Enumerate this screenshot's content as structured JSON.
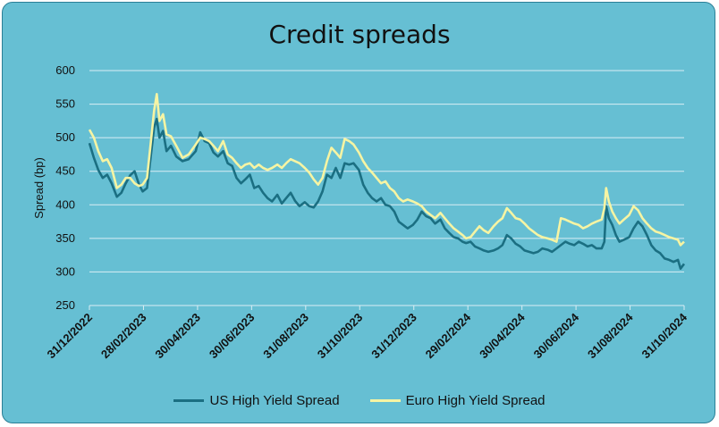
{
  "chart_data": {
    "type": "line",
    "title": "Credit spreads",
    "ylabel": "Spread (bp)",
    "ylim": [
      250,
      600
    ],
    "y_ticks": [
      250,
      300,
      350,
      400,
      450,
      500,
      550,
      600
    ],
    "x_tick_labels": [
      "31/12/2022",
      "28/02/2023",
      "30/04/2023",
      "30/06/2023",
      "31/08/2023",
      "31/10/2023",
      "31/12/2023",
      "29/02/2024",
      "30/04/2024",
      "30/06/2024",
      "31/08/2024",
      "31/10/2024"
    ],
    "x_start": "2022-12-31",
    "x_end": "2024-11-01",
    "grid": true,
    "legend_position": "bottom",
    "series": [
      {
        "name": "US High Yield Spread",
        "color": "#1b6f82",
        "points": [
          [
            "2022-12-31",
            492
          ],
          [
            "2023-01-05",
            470
          ],
          [
            "2023-01-10",
            452
          ],
          [
            "2023-01-15",
            440
          ],
          [
            "2023-01-20",
            445
          ],
          [
            "2023-01-25",
            432
          ],
          [
            "2023-01-31",
            412
          ],
          [
            "2023-02-05",
            418
          ],
          [
            "2023-02-10",
            432
          ],
          [
            "2023-02-15",
            444
          ],
          [
            "2023-02-20",
            450
          ],
          [
            "2023-02-25",
            430
          ],
          [
            "2023-03-01",
            420
          ],
          [
            "2023-03-06",
            425
          ],
          [
            "2023-03-10",
            470
          ],
          [
            "2023-03-14",
            515
          ],
          [
            "2023-03-17",
            528
          ],
          [
            "2023-03-20",
            500
          ],
          [
            "2023-03-24",
            510
          ],
          [
            "2023-03-28",
            480
          ],
          [
            "2023-04-02",
            488
          ],
          [
            "2023-04-08",
            472
          ],
          [
            "2023-04-15",
            465
          ],
          [
            "2023-04-22",
            468
          ],
          [
            "2023-04-30",
            480
          ],
          [
            "2023-05-05",
            508
          ],
          [
            "2023-05-10",
            495
          ],
          [
            "2023-05-15",
            492
          ],
          [
            "2023-05-20",
            478
          ],
          [
            "2023-05-25",
            472
          ],
          [
            "2023-05-31",
            480
          ],
          [
            "2023-06-05",
            462
          ],
          [
            "2023-06-10",
            458
          ],
          [
            "2023-06-15",
            440
          ],
          [
            "2023-06-20",
            432
          ],
          [
            "2023-06-25",
            438
          ],
          [
            "2023-06-30",
            445
          ],
          [
            "2023-07-05",
            425
          ],
          [
            "2023-07-10",
            428
          ],
          [
            "2023-07-15",
            418
          ],
          [
            "2023-07-20",
            410
          ],
          [
            "2023-07-25",
            405
          ],
          [
            "2023-07-31",
            415
          ],
          [
            "2023-08-05",
            402
          ],
          [
            "2023-08-10",
            410
          ],
          [
            "2023-08-15",
            418
          ],
          [
            "2023-08-20",
            406
          ],
          [
            "2023-08-25",
            398
          ],
          [
            "2023-08-31",
            404
          ],
          [
            "2023-09-05",
            398
          ],
          [
            "2023-09-10",
            396
          ],
          [
            "2023-09-15",
            405
          ],
          [
            "2023-09-20",
            420
          ],
          [
            "2023-09-25",
            445
          ],
          [
            "2023-09-30",
            440
          ],
          [
            "2023-10-05",
            455
          ],
          [
            "2023-10-10",
            440
          ],
          [
            "2023-10-15",
            462
          ],
          [
            "2023-10-20",
            460
          ],
          [
            "2023-10-25",
            462
          ],
          [
            "2023-10-31",
            452
          ],
          [
            "2023-11-05",
            430
          ],
          [
            "2023-11-10",
            418
          ],
          [
            "2023-11-15",
            410
          ],
          [
            "2023-11-20",
            405
          ],
          [
            "2023-11-25",
            410
          ],
          [
            "2023-11-30",
            400
          ],
          [
            "2023-12-05",
            398
          ],
          [
            "2023-12-10",
            390
          ],
          [
            "2023-12-15",
            375
          ],
          [
            "2023-12-20",
            370
          ],
          [
            "2023-12-25",
            365
          ],
          [
            "2023-12-31",
            370
          ],
          [
            "2024-01-05",
            378
          ],
          [
            "2024-01-10",
            390
          ],
          [
            "2024-01-15",
            383
          ],
          [
            "2024-01-20",
            380
          ],
          [
            "2024-01-25",
            372
          ],
          [
            "2024-01-31",
            378
          ],
          [
            "2024-02-05",
            365
          ],
          [
            "2024-02-10",
            358
          ],
          [
            "2024-02-15",
            352
          ],
          [
            "2024-02-20",
            350
          ],
          [
            "2024-02-25",
            345
          ],
          [
            "2024-02-29",
            343
          ],
          [
            "2024-03-05",
            345
          ],
          [
            "2024-03-10",
            338
          ],
          [
            "2024-03-15",
            335
          ],
          [
            "2024-03-20",
            332
          ],
          [
            "2024-03-25",
            330
          ],
          [
            "2024-03-31",
            332
          ],
          [
            "2024-04-05",
            335
          ],
          [
            "2024-04-10",
            340
          ],
          [
            "2024-04-15",
            355
          ],
          [
            "2024-04-20",
            350
          ],
          [
            "2024-04-25",
            342
          ],
          [
            "2024-04-30",
            338
          ],
          [
            "2024-05-05",
            332
          ],
          [
            "2024-05-10",
            330
          ],
          [
            "2024-05-15",
            328
          ],
          [
            "2024-05-20",
            330
          ],
          [
            "2024-05-25",
            335
          ],
          [
            "2024-05-31",
            333
          ],
          [
            "2024-06-05",
            330
          ],
          [
            "2024-06-10",
            335
          ],
          [
            "2024-06-15",
            340
          ],
          [
            "2024-06-20",
            345
          ],
          [
            "2024-06-25",
            342
          ],
          [
            "2024-06-30",
            340
          ],
          [
            "2024-07-05",
            345
          ],
          [
            "2024-07-10",
            342
          ],
          [
            "2024-07-15",
            338
          ],
          [
            "2024-07-20",
            340
          ],
          [
            "2024-07-25",
            335
          ],
          [
            "2024-07-31",
            335
          ],
          [
            "2024-08-03",
            345
          ],
          [
            "2024-08-05",
            398
          ],
          [
            "2024-08-08",
            380
          ],
          [
            "2024-08-12",
            370
          ],
          [
            "2024-08-16",
            355
          ],
          [
            "2024-08-20",
            345
          ],
          [
            "2024-08-25",
            348
          ],
          [
            "2024-08-31",
            352
          ],
          [
            "2024-09-05",
            365
          ],
          [
            "2024-09-10",
            375
          ],
          [
            "2024-09-15",
            368
          ],
          [
            "2024-09-20",
            355
          ],
          [
            "2024-09-25",
            340
          ],
          [
            "2024-09-30",
            332
          ],
          [
            "2024-10-05",
            328
          ],
          [
            "2024-10-10",
            320
          ],
          [
            "2024-10-15",
            318
          ],
          [
            "2024-10-20",
            315
          ],
          [
            "2024-10-25",
            318
          ],
          [
            "2024-10-28",
            305
          ],
          [
            "2024-11-01",
            312
          ]
        ]
      },
      {
        "name": "Euro High Yield Spread",
        "color": "#f6f4a3",
        "points": [
          [
            "2022-12-31",
            512
          ],
          [
            "2023-01-05",
            500
          ],
          [
            "2023-01-10",
            480
          ],
          [
            "2023-01-15",
            465
          ],
          [
            "2023-01-20",
            468
          ],
          [
            "2023-01-25",
            455
          ],
          [
            "2023-01-31",
            425
          ],
          [
            "2023-02-05",
            430
          ],
          [
            "2023-02-10",
            440
          ],
          [
            "2023-02-15",
            440
          ],
          [
            "2023-02-20",
            432
          ],
          [
            "2023-02-25",
            428
          ],
          [
            "2023-03-01",
            430
          ],
          [
            "2023-03-06",
            440
          ],
          [
            "2023-03-10",
            490
          ],
          [
            "2023-03-14",
            540
          ],
          [
            "2023-03-17",
            565
          ],
          [
            "2023-03-20",
            525
          ],
          [
            "2023-03-24",
            535
          ],
          [
            "2023-03-28",
            505
          ],
          [
            "2023-04-02",
            502
          ],
          [
            "2023-04-08",
            488
          ],
          [
            "2023-04-15",
            470
          ],
          [
            "2023-04-22",
            475
          ],
          [
            "2023-04-30",
            490
          ],
          [
            "2023-05-05",
            500
          ],
          [
            "2023-05-10",
            498
          ],
          [
            "2023-05-15",
            495
          ],
          [
            "2023-05-20",
            488
          ],
          [
            "2023-05-25",
            480
          ],
          [
            "2023-05-31",
            495
          ],
          [
            "2023-06-05",
            475
          ],
          [
            "2023-06-10",
            470
          ],
          [
            "2023-06-15",
            462
          ],
          [
            "2023-06-20",
            455
          ],
          [
            "2023-06-25",
            460
          ],
          [
            "2023-06-30",
            462
          ],
          [
            "2023-07-05",
            455
          ],
          [
            "2023-07-10",
            460
          ],
          [
            "2023-07-15",
            455
          ],
          [
            "2023-07-20",
            452
          ],
          [
            "2023-07-25",
            455
          ],
          [
            "2023-07-31",
            460
          ],
          [
            "2023-08-05",
            455
          ],
          [
            "2023-08-10",
            462
          ],
          [
            "2023-08-15",
            468
          ],
          [
            "2023-08-20",
            465
          ],
          [
            "2023-08-25",
            462
          ],
          [
            "2023-08-31",
            455
          ],
          [
            "2023-09-05",
            448
          ],
          [
            "2023-09-10",
            438
          ],
          [
            "2023-09-15",
            430
          ],
          [
            "2023-09-20",
            440
          ],
          [
            "2023-09-25",
            465
          ],
          [
            "2023-09-30",
            485
          ],
          [
            "2023-10-05",
            478
          ],
          [
            "2023-10-10",
            470
          ],
          [
            "2023-10-15",
            498
          ],
          [
            "2023-10-20",
            495
          ],
          [
            "2023-10-25",
            490
          ],
          [
            "2023-10-31",
            478
          ],
          [
            "2023-11-05",
            465
          ],
          [
            "2023-11-10",
            455
          ],
          [
            "2023-11-15",
            448
          ],
          [
            "2023-11-20",
            440
          ],
          [
            "2023-11-25",
            432
          ],
          [
            "2023-11-30",
            435
          ],
          [
            "2023-12-05",
            425
          ],
          [
            "2023-12-10",
            420
          ],
          [
            "2023-12-15",
            410
          ],
          [
            "2023-12-20",
            405
          ],
          [
            "2023-12-25",
            408
          ],
          [
            "2023-12-31",
            405
          ],
          [
            "2024-01-05",
            402
          ],
          [
            "2024-01-10",
            398
          ],
          [
            "2024-01-15",
            390
          ],
          [
            "2024-01-20",
            385
          ],
          [
            "2024-01-25",
            380
          ],
          [
            "2024-01-31",
            388
          ],
          [
            "2024-02-05",
            380
          ],
          [
            "2024-02-10",
            372
          ],
          [
            "2024-02-15",
            365
          ],
          [
            "2024-02-20",
            360
          ],
          [
            "2024-02-25",
            355
          ],
          [
            "2024-02-29",
            350
          ],
          [
            "2024-03-05",
            352
          ],
          [
            "2024-03-10",
            360
          ],
          [
            "2024-03-15",
            368
          ],
          [
            "2024-03-20",
            362
          ],
          [
            "2024-03-25",
            358
          ],
          [
            "2024-03-31",
            368
          ],
          [
            "2024-04-05",
            375
          ],
          [
            "2024-04-10",
            380
          ],
          [
            "2024-04-15",
            395
          ],
          [
            "2024-04-20",
            388
          ],
          [
            "2024-04-25",
            380
          ],
          [
            "2024-04-30",
            378
          ],
          [
            "2024-05-05",
            372
          ],
          [
            "2024-05-10",
            365
          ],
          [
            "2024-05-15",
            360
          ],
          [
            "2024-05-20",
            355
          ],
          [
            "2024-05-25",
            352
          ],
          [
            "2024-05-31",
            350
          ],
          [
            "2024-06-05",
            348
          ],
          [
            "2024-06-10",
            345
          ],
          [
            "2024-06-15",
            380
          ],
          [
            "2024-06-20",
            378
          ],
          [
            "2024-06-25",
            375
          ],
          [
            "2024-06-30",
            372
          ],
          [
            "2024-07-05",
            370
          ],
          [
            "2024-07-10",
            365
          ],
          [
            "2024-07-15",
            368
          ],
          [
            "2024-07-20",
            372
          ],
          [
            "2024-07-25",
            375
          ],
          [
            "2024-07-31",
            378
          ],
          [
            "2024-08-03",
            395
          ],
          [
            "2024-08-05",
            425
          ],
          [
            "2024-08-08",
            405
          ],
          [
            "2024-08-12",
            390
          ],
          [
            "2024-08-16",
            380
          ],
          [
            "2024-08-20",
            372
          ],
          [
            "2024-08-25",
            378
          ],
          [
            "2024-08-31",
            385
          ],
          [
            "2024-09-05",
            398
          ],
          [
            "2024-09-10",
            392
          ],
          [
            "2024-09-15",
            380
          ],
          [
            "2024-09-20",
            372
          ],
          [
            "2024-09-25",
            365
          ],
          [
            "2024-09-30",
            360
          ],
          [
            "2024-10-05",
            358
          ],
          [
            "2024-10-10",
            355
          ],
          [
            "2024-10-15",
            352
          ],
          [
            "2024-10-20",
            350
          ],
          [
            "2024-10-25",
            348
          ],
          [
            "2024-10-28",
            340
          ],
          [
            "2024-11-01",
            345
          ]
        ]
      }
    ]
  }
}
